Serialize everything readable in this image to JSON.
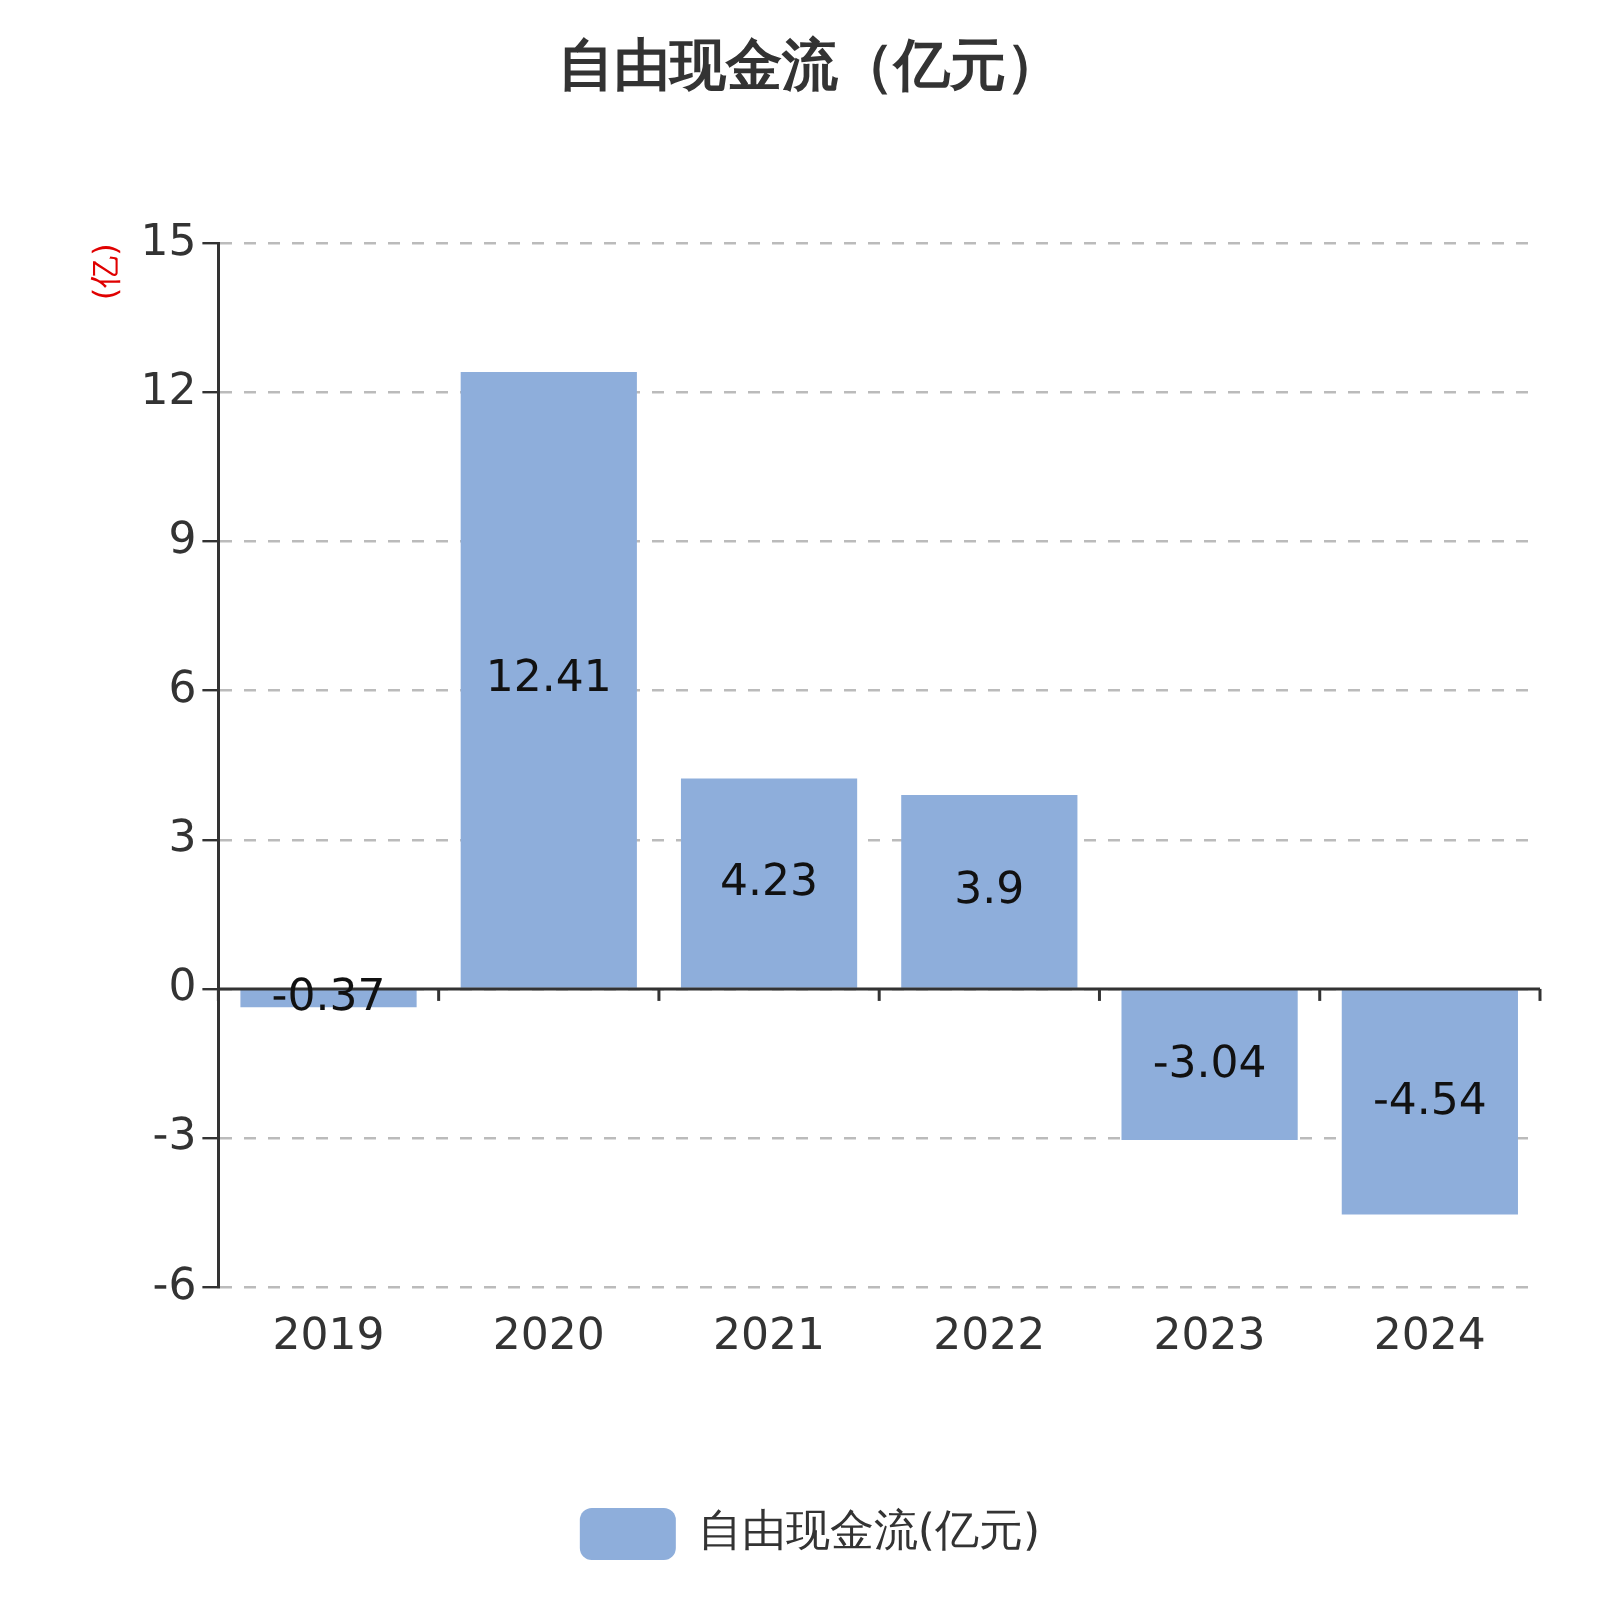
{
  "chart_data": {
    "type": "bar",
    "title": "自由现金流（亿元）",
    "ylabel": "(亿)",
    "categories": [
      "2019",
      "2020",
      "2021",
      "2022",
      "2023",
      "2024"
    ],
    "series": [
      {
        "name": "自由现金流(亿元)",
        "color": "#8eaedb",
        "values": [
          -0.37,
          12.41,
          4.23,
          3.9,
          -3.04,
          -4.54
        ]
      }
    ],
    "ylim": [
      -6,
      15
    ],
    "yticks": [
      -6,
      -3,
      0,
      3,
      6,
      9,
      12,
      15
    ],
    "grid": "y",
    "legend": "bottom",
    "data_labels": true
  }
}
